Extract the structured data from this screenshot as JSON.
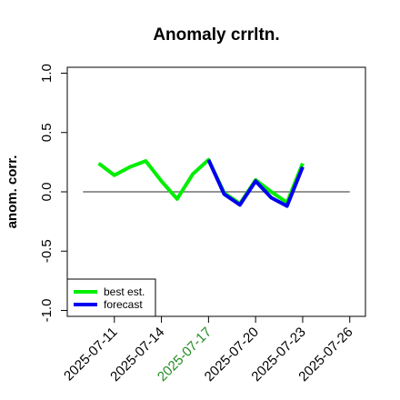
{
  "chart_data": {
    "type": "line",
    "title": "Anomaly crrltn.",
    "xlabel": "",
    "ylabel": "anom. corr.",
    "ylim": [
      -1.05,
      1.05
    ],
    "yticks": [
      -1.0,
      -0.5,
      0.0,
      0.5,
      1.0
    ],
    "ytick_labels": [
      "-1.0",
      "-0.5",
      "0.0",
      "0.5",
      "1.0"
    ],
    "xlim": [
      "2025-07-08",
      "2025-07-27"
    ],
    "xticks": [
      "2025-07-11",
      "2025-07-14",
      "2025-07-17",
      "2025-07-20",
      "2025-07-23",
      "2025-07-26"
    ],
    "xtick_colors": [
      "#000000",
      "#000000",
      "#228B22",
      "#000000",
      "#000000",
      "#000000"
    ],
    "reference_line": {
      "y": 0.0,
      "x_from": "2025-07-09",
      "x_to": "2025-07-26",
      "color": "#555555"
    },
    "grid": false,
    "legend_position": "bottom-left",
    "series": [
      {
        "name": "best est.",
        "color": "#00ee00",
        "x": [
          "2025-07-10",
          "2025-07-11",
          "2025-07-12",
          "2025-07-13",
          "2025-07-14",
          "2025-07-15",
          "2025-07-16",
          "2025-07-17",
          "2025-07-18",
          "2025-07-19",
          "2025-07-20",
          "2025-07-21",
          "2025-07-22",
          "2025-07-23"
        ],
        "values": [
          0.24,
          0.14,
          0.21,
          0.26,
          0.09,
          -0.06,
          0.15,
          0.27,
          -0.01,
          -0.1,
          0.1,
          0.0,
          -0.09,
          0.24
        ]
      },
      {
        "name": "forecast",
        "color": "#0000ee",
        "x": [
          "2025-07-17",
          "2025-07-18",
          "2025-07-19",
          "2025-07-20",
          "2025-07-21",
          "2025-07-22",
          "2025-07-23"
        ],
        "values": [
          0.27,
          -0.02,
          -0.11,
          0.09,
          -0.05,
          -0.12,
          0.21
        ]
      }
    ]
  }
}
